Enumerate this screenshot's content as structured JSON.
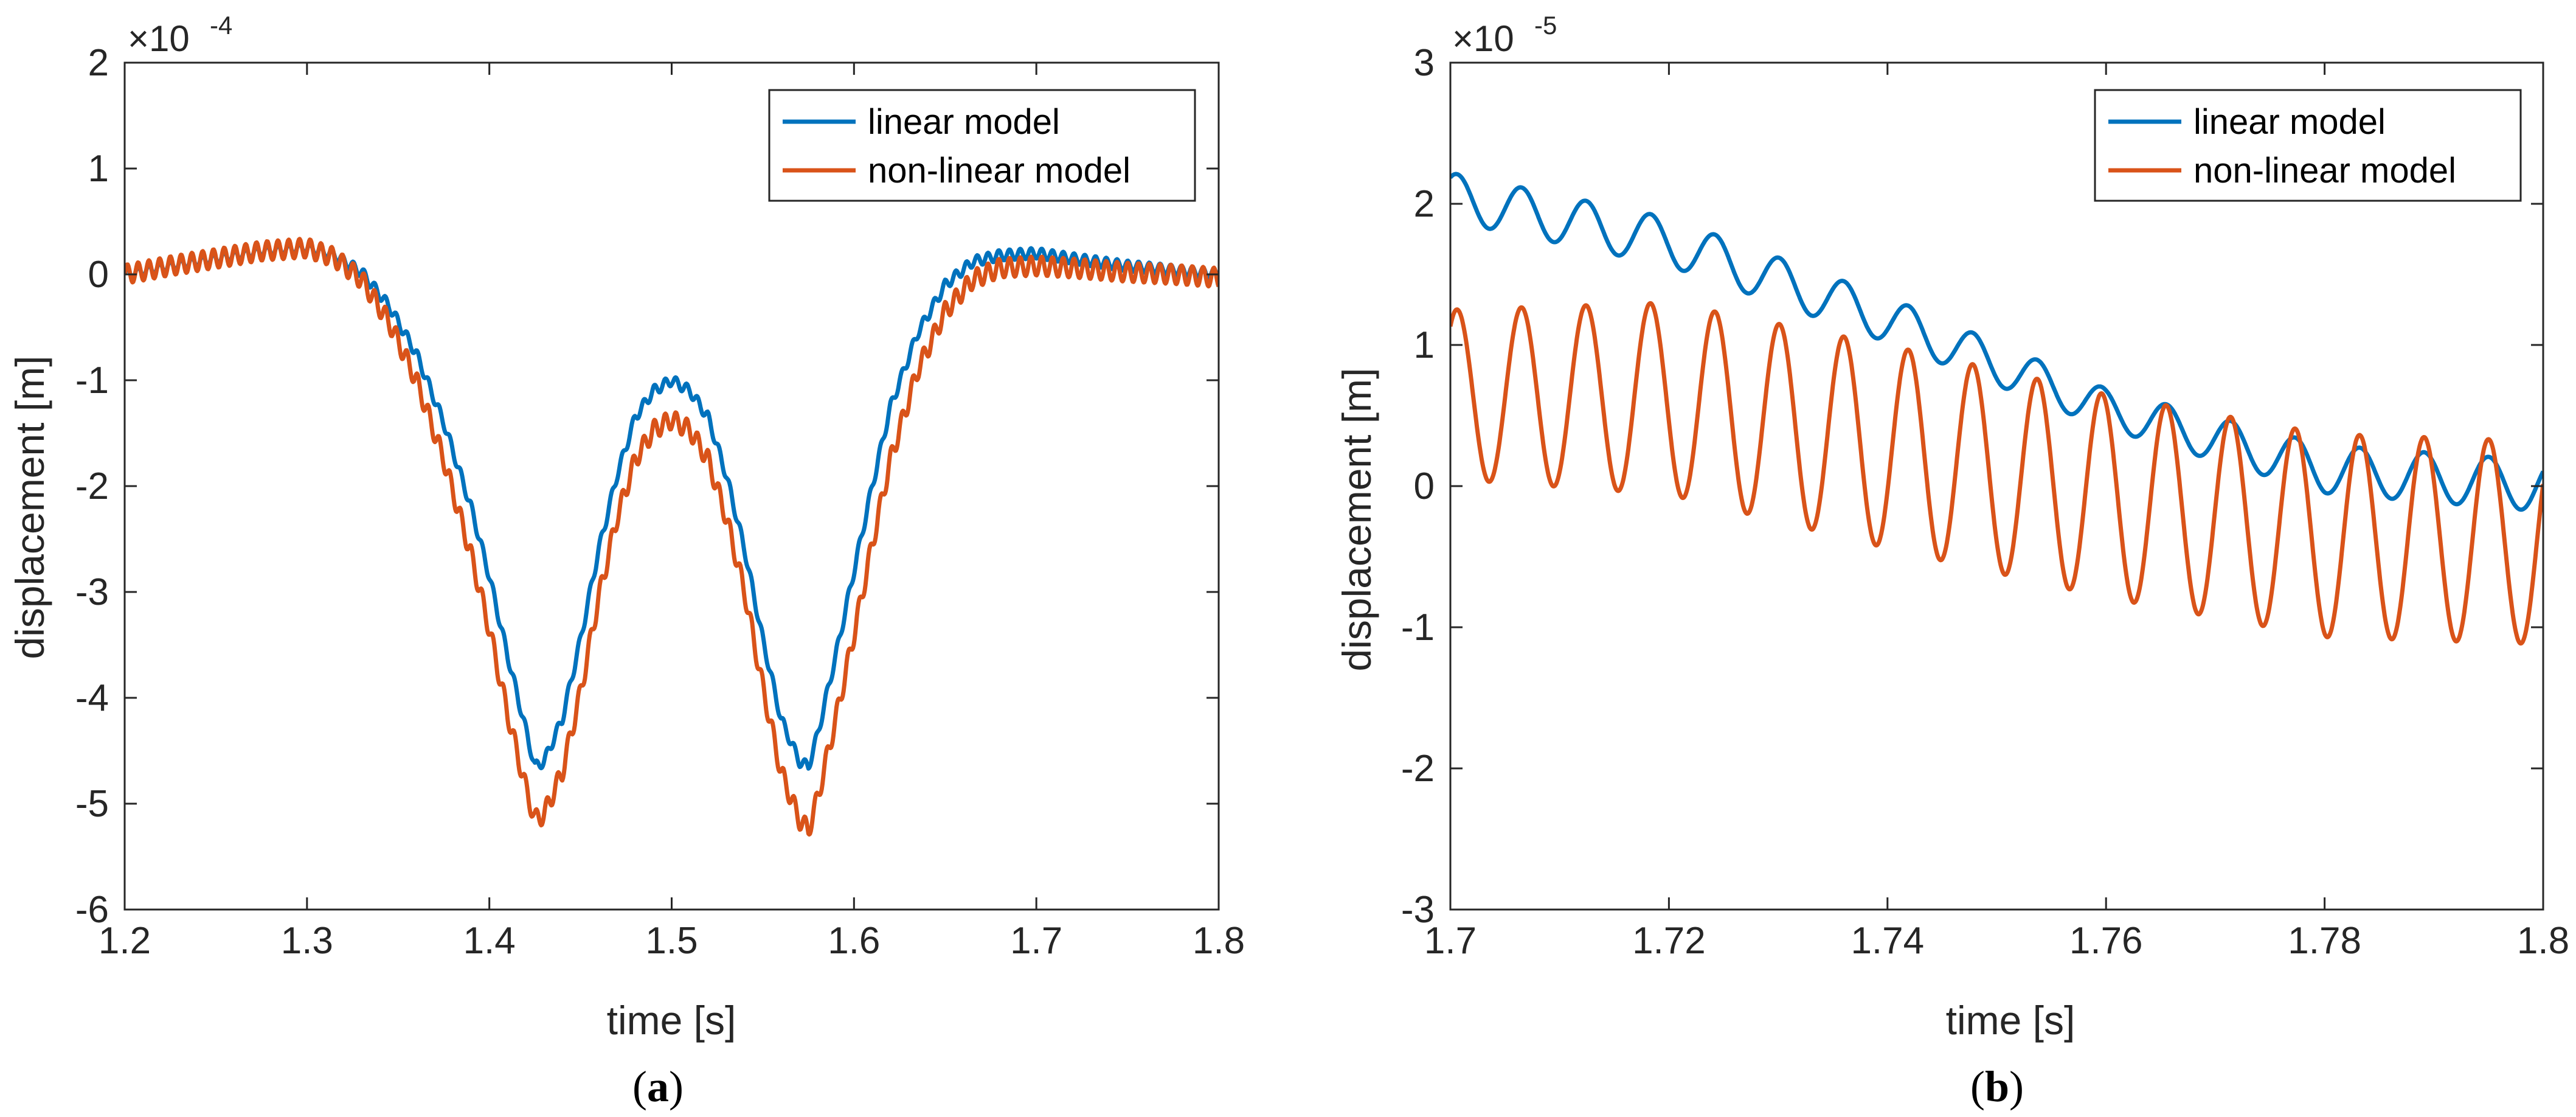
{
  "chart_data": [
    {
      "type": "line",
      "panel_label": "(a)",
      "panel_label_parts": {
        "open": "(",
        "letter": "a",
        "close": ")"
      },
      "xlabel": "time [s]",
      "ylabel": "displacement [m]",
      "y_exponent": {
        "prefix": "×10",
        "power": "-4"
      },
      "xlim": [
        1.2,
        1.8
      ],
      "ylim": [
        -6,
        2
      ],
      "x_ticks": [
        1.2,
        1.3,
        1.4,
        1.5,
        1.6,
        1.7,
        1.8
      ],
      "x_tick_labels": [
        "1.2",
        "1.3",
        "1.4",
        "1.5",
        "1.6",
        "1.7",
        "1.8"
      ],
      "y_ticks": [
        2,
        1,
        0,
        -1,
        -2,
        -3,
        -4,
        -5,
        -6
      ],
      "y_tick_labels": [
        "2",
        "1",
        "0",
        "-1",
        "-2",
        "-3",
        "-4",
        "-5",
        "-6"
      ],
      "grid": false,
      "legend_position": "top-right",
      "x": [
        1.2,
        1.225,
        1.25,
        1.275,
        1.3,
        1.315,
        1.33,
        1.345,
        1.36,
        1.375,
        1.39,
        1.4,
        1.41,
        1.42,
        1.425,
        1.43,
        1.44,
        1.45,
        1.46,
        1.47,
        1.48,
        1.49,
        1.5,
        1.51,
        1.52,
        1.53,
        1.54,
        1.55,
        1.56,
        1.57,
        1.575,
        1.58,
        1.59,
        1.6,
        1.61,
        1.62,
        1.635,
        1.65,
        1.665,
        1.68,
        1.7,
        1.72,
        1.75,
        1.775,
        1.8
      ],
      "series": [
        {
          "name": "linear model",
          "color": "#0072BD",
          "ripple_amplitude": 0.05,
          "ripple_period": 0.0059,
          "values": [
            0.0,
            0.08,
            0.15,
            0.22,
            0.25,
            0.18,
            0.02,
            -0.3,
            -0.75,
            -1.4,
            -2.2,
            -2.85,
            -3.6,
            -4.3,
            -4.65,
            -4.6,
            -4.2,
            -3.45,
            -2.6,
            -1.9,
            -1.35,
            -1.1,
            -1.0,
            -1.1,
            -1.35,
            -1.9,
            -2.6,
            -3.45,
            -4.2,
            -4.6,
            -4.65,
            -4.35,
            -3.6,
            -2.8,
            -2.0,
            -1.25,
            -0.55,
            -0.1,
            0.12,
            0.18,
            0.2,
            0.15,
            0.08,
            0.04,
            0.0
          ]
        },
        {
          "name": "non-linear model",
          "color": "#D95319",
          "ripple_amplitude": 0.09,
          "ripple_period": 0.0059,
          "values": [
            0.0,
            0.08,
            0.15,
            0.22,
            0.25,
            0.16,
            -0.05,
            -0.45,
            -1.0,
            -1.75,
            -2.65,
            -3.35,
            -4.15,
            -4.85,
            -5.15,
            -5.1,
            -4.7,
            -3.95,
            -3.05,
            -2.3,
            -1.75,
            -1.47,
            -1.37,
            -1.47,
            -1.75,
            -2.3,
            -3.0,
            -3.9,
            -4.7,
            -5.15,
            -5.25,
            -4.95,
            -4.2,
            -3.4,
            -2.55,
            -1.75,
            -0.9,
            -0.35,
            -0.05,
            0.06,
            0.08,
            0.06,
            0.02,
            0.0,
            -0.03
          ]
        }
      ]
    },
    {
      "type": "line",
      "panel_label": "(b)",
      "panel_label_parts": {
        "open": "(",
        "letter": "b",
        "close": ")"
      },
      "xlabel": "time [s]",
      "ylabel": "displacement [m]",
      "y_exponent": {
        "prefix": "×10",
        "power": "-5"
      },
      "xlim": [
        1.7,
        1.8
      ],
      "ylim": [
        -3,
        3
      ],
      "x_ticks": [
        1.7,
        1.72,
        1.74,
        1.76,
        1.78,
        1.8
      ],
      "x_tick_labels": [
        "1.7",
        "1.72",
        "1.74",
        "1.76",
        "1.78",
        "1.8"
      ],
      "y_ticks": [
        3,
        2,
        1,
        0,
        -1,
        -2,
        -3
      ],
      "y_tick_labels": [
        "3",
        "2",
        "1",
        "0",
        "-1",
        "-2",
        "-3"
      ],
      "grid": false,
      "legend_position": "top-right",
      "x": [
        1.7,
        1.72,
        1.74,
        1.76,
        1.78,
        1.8
      ],
      "series": [
        {
          "name": "linear model",
          "color": "#0072BD",
          "oscillation_period": 0.0059,
          "oscillation_phase_x": 1.7065,
          "center": [
            2.05,
            1.73,
            1.18,
            0.55,
            0.12,
            0.0
          ],
          "amplitude": [
            0.17,
            0.17,
            0.16,
            0.14,
            0.17,
            0.18
          ]
        },
        {
          "name": "non-linear model",
          "color": "#D95319",
          "oscillation_period": 0.0059,
          "oscillation_phase_x": 1.7065,
          "center": [
            0.65,
            0.62,
            0.28,
            -0.07,
            -0.35,
            -0.4
          ],
          "amplitude": [
            0.6,
            0.68,
            0.72,
            0.72,
            0.72,
            0.72
          ]
        }
      ]
    }
  ]
}
